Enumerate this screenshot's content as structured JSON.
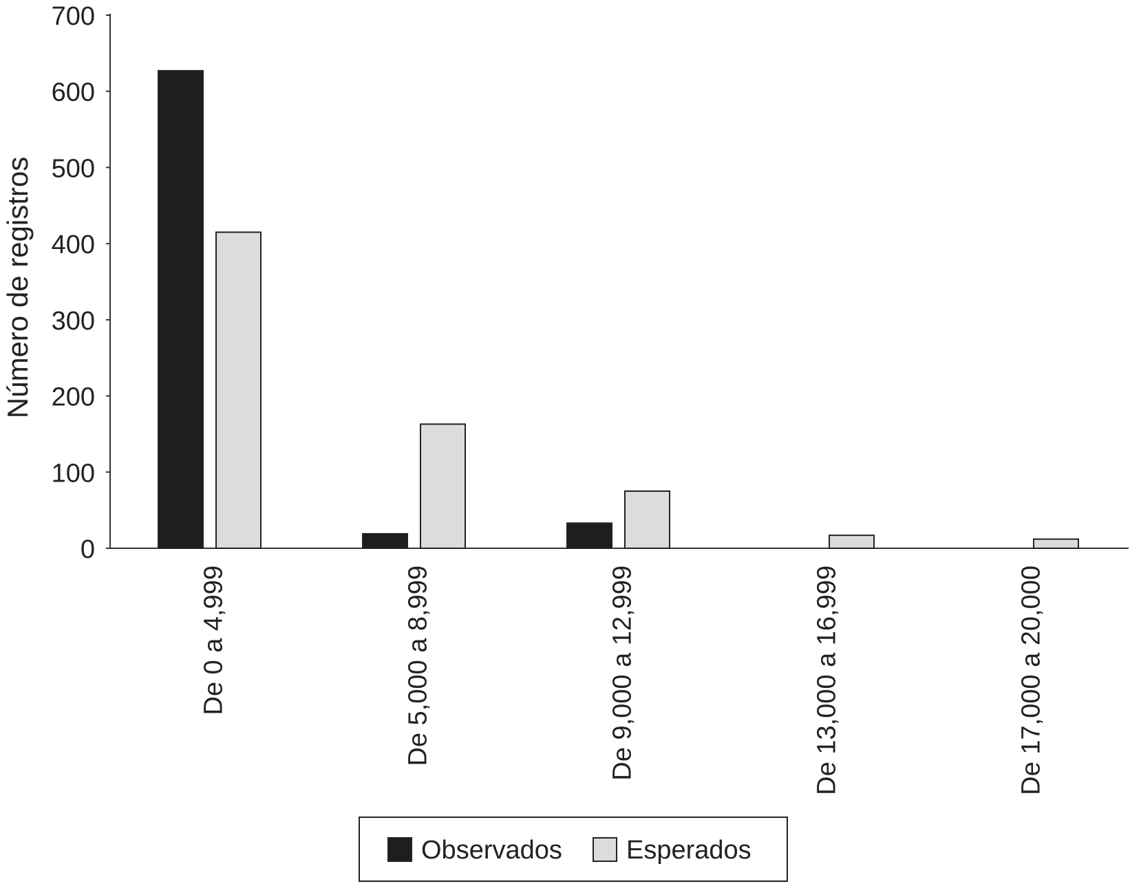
{
  "chart_data": {
    "type": "bar",
    "title": "",
    "xlabel": "",
    "ylabel": "Número de registros",
    "ylim": [
      0,
      700
    ],
    "yticks": [
      0,
      100,
      200,
      300,
      400,
      500,
      600,
      700
    ],
    "categories": [
      "De 0 a 4,999",
      "De 5,000 a 8,999",
      "De 9,000 a 12,999",
      "De 13,000 a 16,999",
      "De 17,000 a 20,000"
    ],
    "series": [
      {
        "name": "Observados",
        "color": "#1e1e1e",
        "values": [
          627,
          19,
          33,
          0,
          0
        ]
      },
      {
        "name": "Esperados",
        "color": "#dcdcdc",
        "values": [
          415,
          163,
          75,
          17,
          12
        ]
      }
    ],
    "grid": false,
    "legend": "bottom-center"
  }
}
